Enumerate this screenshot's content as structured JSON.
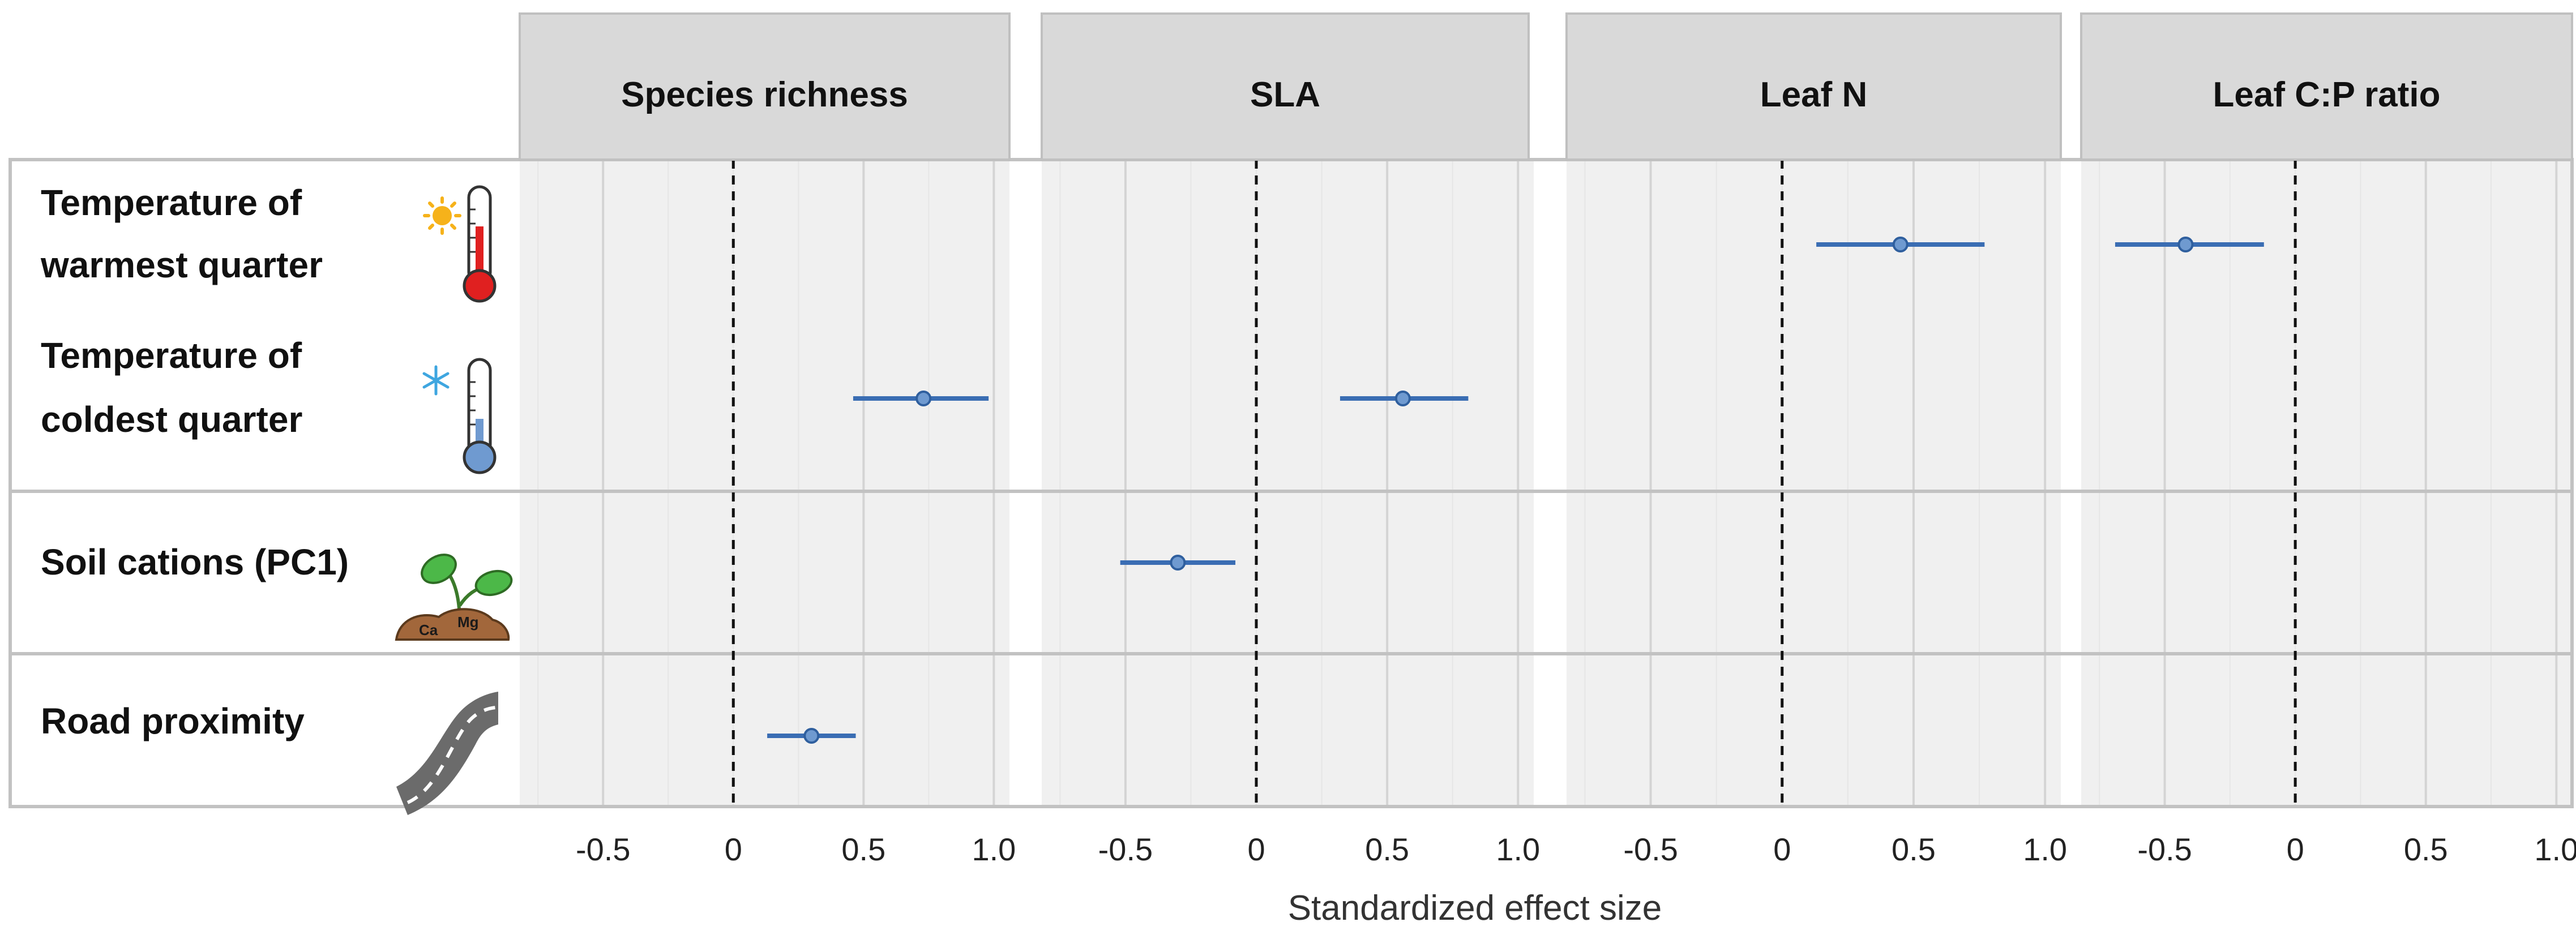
{
  "chart_data": {
    "type": "forest",
    "xlabel": "Standardized effect size",
    "xlim": [
      -0.82,
      1.06
    ],
    "xticks": [
      -0.5,
      0,
      0.5,
      1.0
    ],
    "xtick_labels": [
      "-0.5",
      "0",
      "0.5",
      "1.0"
    ],
    "reference_line": 0,
    "facets": [
      "Species richness",
      "SLA",
      "Leaf N",
      "Leaf C:P ratio"
    ],
    "rows": [
      {
        "id": "twq",
        "label_lines": [
          "Temperature of",
          "warmest quarter"
        ],
        "icon": "hot-thermometer-icon"
      },
      {
        "id": "tcq",
        "label_lines": [
          "Temperature of",
          "coldest quarter"
        ],
        "icon": "cold-thermometer-icon"
      },
      {
        "id": "soil",
        "label_lines": [
          "Soil cations (PC1)"
        ],
        "icon": "soil-seedling-icon",
        "icon_text": [
          "Ca",
          "Mg"
        ]
      },
      {
        "id": "road",
        "label_lines": [
          "Road proximity"
        ],
        "icon": "road-icon"
      }
    ],
    "estimates": [
      {
        "facet": "Species richness",
        "row": "tcq",
        "estimate": 0.73,
        "lower": 0.46,
        "upper": 0.98
      },
      {
        "facet": "Species richness",
        "row": "road",
        "estimate": 0.3,
        "lower": 0.13,
        "upper": 0.47
      },
      {
        "facet": "SLA",
        "row": "tcq",
        "estimate": 0.56,
        "lower": 0.32,
        "upper": 0.81
      },
      {
        "facet": "SLA",
        "row": "soil",
        "estimate": -0.3,
        "lower": -0.52,
        "upper": -0.08
      },
      {
        "facet": "Leaf N",
        "row": "twq",
        "estimate": 0.45,
        "lower": 0.13,
        "upper": 0.77
      },
      {
        "facet": "Leaf C:P ratio",
        "row": "twq",
        "estimate": -0.42,
        "lower": -0.69,
        "upper": -0.12
      }
    ]
  }
}
